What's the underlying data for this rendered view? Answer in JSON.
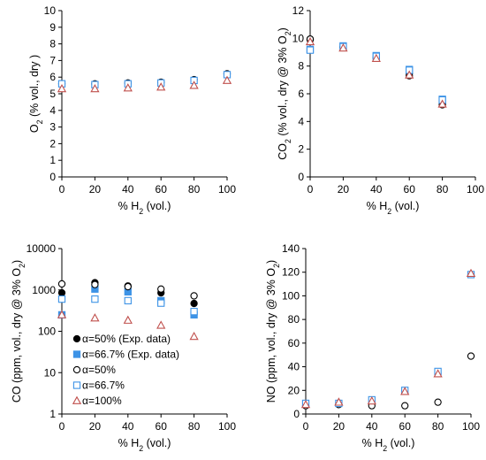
{
  "colors": {
    "black": "#000000",
    "blue": "#3d93e6",
    "red": "#c0504d",
    "axis": "#000000",
    "grid": "#d9d9d9"
  },
  "chart_data": [
    {
      "id": "o2",
      "type": "scatter",
      "xlabel": "% H2 (vol.)",
      "ylabel": "O2 (% vol., dry )",
      "xlim": [
        0,
        100
      ],
      "ylim": [
        0,
        10
      ],
      "xticks": [
        0,
        20,
        40,
        60,
        80,
        100
      ],
      "yticks": [
        0,
        1,
        2,
        3,
        4,
        5,
        6,
        7,
        8,
        9,
        10
      ],
      "grid": false,
      "series": [
        {
          "style": "open-circle-black",
          "x": [
            0,
            20,
            40,
            60,
            80,
            100
          ],
          "y": [
            5.6,
            5.6,
            5.65,
            5.7,
            5.85,
            6.2
          ]
        },
        {
          "style": "open-square-blue",
          "x": [
            0,
            20,
            40,
            60,
            80,
            100
          ],
          "y": [
            5.6,
            5.55,
            5.6,
            5.65,
            5.8,
            6.15
          ]
        },
        {
          "style": "open-triangle-red",
          "x": [
            0,
            20,
            40,
            60,
            80,
            100
          ],
          "y": [
            5.3,
            5.3,
            5.35,
            5.4,
            5.5,
            5.8
          ]
        }
      ]
    },
    {
      "id": "co2",
      "type": "scatter",
      "xlabel": "% H2 (vol.)",
      "ylabel": "CO2 (% vol., dry @ 3% O2)",
      "xlim": [
        0,
        100
      ],
      "ylim": [
        0,
        12
      ],
      "xticks": [
        0,
        20,
        40,
        60,
        80,
        100
      ],
      "yticks": [
        0,
        2,
        4,
        6,
        8,
        10,
        12
      ],
      "grid": false,
      "series": [
        {
          "style": "filled-circle-black",
          "x": [
            0,
            20,
            40,
            60,
            80
          ],
          "y": [
            9.9,
            9.4,
            8.65,
            7.45,
            5.3
          ]
        },
        {
          "style": "filled-square-blue",
          "x": [
            0,
            20,
            40,
            60,
            80
          ],
          "y": [
            9.2,
            9.45,
            8.75,
            7.75,
            5.6
          ]
        },
        {
          "style": "open-circle-black",
          "x": [
            0,
            20,
            40,
            60,
            80
          ],
          "y": [
            9.95,
            9.35,
            8.6,
            7.3,
            5.2
          ]
        },
        {
          "style": "open-square-blue",
          "x": [
            0,
            20,
            40,
            60,
            80
          ],
          "y": [
            9.15,
            9.4,
            8.7,
            7.7,
            5.55
          ]
        },
        {
          "style": "open-triangle-red",
          "x": [
            0,
            20,
            40,
            60,
            80
          ],
          "y": [
            9.75,
            9.3,
            8.55,
            7.35,
            5.25
          ]
        }
      ]
    },
    {
      "id": "co",
      "type": "scatter",
      "xlabel": "% H2 (vol.)",
      "ylabel": "CO (ppm, vol., dry @ 3% O2)",
      "xlim": [
        0,
        100
      ],
      "ylim": [
        1,
        10000
      ],
      "yscale": "log",
      "xticks": [
        0,
        20,
        40,
        60,
        80,
        100
      ],
      "yticks": [
        1,
        10,
        100,
        1000,
        10000
      ],
      "ytick_labels": [
        "1",
        "10",
        "100",
        "1000",
        "10000"
      ],
      "grid": false,
      "legend": {
        "position": "bottom-left",
        "entries": [
          {
            "style": "filled-circle-black",
            "label": "α=50% (Exp. data)"
          },
          {
            "style": "filled-square-blue",
            "label": "α=66.7% (Exp. data)"
          },
          {
            "style": "open-circle-black",
            "label": "α=50%"
          },
          {
            "style": "open-square-blue",
            "label": "α=66.7%"
          },
          {
            "style": "open-triangle-red",
            "label": "α=100%"
          }
        ]
      },
      "series": [
        {
          "style": "filled-circle-black",
          "x": [
            0,
            20,
            40,
            60,
            80
          ],
          "y": [
            850,
            1500,
            1250,
            850,
            470
          ]
        },
        {
          "style": "filled-square-blue",
          "x": [
            0,
            20,
            40,
            60,
            80
          ],
          "y": [
            250,
            1050,
            900,
            550,
            250
          ]
        },
        {
          "style": "open-circle-black",
          "x": [
            0,
            20,
            40,
            60,
            80
          ],
          "y": [
            1400,
            1350,
            1200,
            1050,
            720
          ]
        },
        {
          "style": "open-square-blue",
          "x": [
            0,
            20,
            40,
            60,
            80
          ],
          "y": [
            600,
            600,
            550,
            480,
            300
          ]
        },
        {
          "style": "open-triangle-red",
          "x": [
            0,
            20,
            40,
            60,
            80
          ],
          "y": [
            250,
            210,
            185,
            140,
            75
          ]
        }
      ]
    },
    {
      "id": "no",
      "type": "scatter",
      "xlabel": "% H2 (vol.)",
      "ylabel": "NO (ppm, vol., dry @ 3% O2)",
      "xlim": [
        0,
        100
      ],
      "ylim": [
        0,
        140
      ],
      "xticks": [
        0,
        20,
        40,
        60,
        80,
        100
      ],
      "yticks": [
        0,
        20,
        40,
        60,
        80,
        100,
        120,
        140
      ],
      "grid": false,
      "series": [
        {
          "style": "open-circle-black",
          "x": [
            0,
            20,
            40,
            60,
            80,
            100
          ],
          "y": [
            7,
            8,
            7,
            7,
            10,
            49
          ]
        },
        {
          "style": "open-square-blue",
          "x": [
            0,
            20,
            40,
            60,
            80,
            100
          ],
          "y": [
            9,
            9,
            12,
            20,
            36,
            118
          ]
        },
        {
          "style": "open-triangle-red",
          "x": [
            0,
            20,
            40,
            60,
            80,
            100
          ],
          "y": [
            8,
            10,
            11,
            19,
            34,
            119
          ]
        }
      ]
    }
  ]
}
